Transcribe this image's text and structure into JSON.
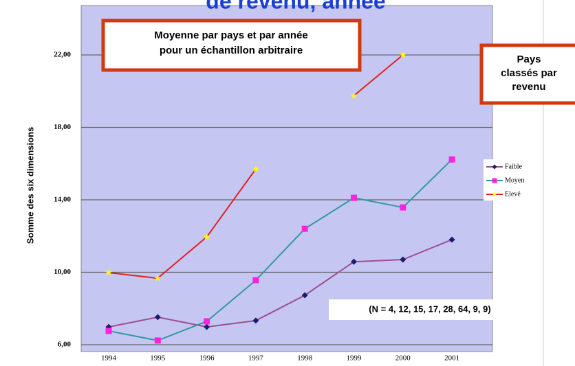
{
  "chart_data": {
    "type": "line",
    "title": "de revenu, année",
    "y_label": "Somme des six dimensions",
    "annotations": [
      "Moyenne par pays et par année",
      "pour un échantillon arbitraire",
      "Pays",
      "classés par",
      "revenu",
      "(N = 4, 12, 15, 17, 28, 64, 9, 9)"
    ],
    "categories": [
      "1994",
      "1995",
      "1996",
      "1997",
      "1998",
      "1999",
      "2000",
      "2001"
    ],
    "series": [
      {
        "name": "Faible",
        "color": "#9b4f8f",
        "marker_color": "#1c1c70",
        "marker": "diamond",
        "values": [
          6.98,
          7.52,
          6.98,
          7.33,
          8.73,
          10.58,
          10.7,
          11.8
        ]
      },
      {
        "name": "Moyen",
        "color": "#2f9aa0",
        "marker_color": "#ff22dd",
        "marker": "square",
        "values": [
          6.76,
          6.23,
          7.29,
          9.56,
          12.4,
          14.11,
          13.58,
          16.23
        ]
      },
      {
        "name": "Elevé",
        "color": "#e02020",
        "marker_color": "#ffff00",
        "marker": "star",
        "values": [
          9.98,
          9.67,
          11.95,
          15.7,
          null,
          19.75,
          22.0,
          null
        ]
      }
    ],
    "ylim": [
      5.62,
      24.73
    ],
    "yticks": [
      {
        "value": 6,
        "label": "6,00"
      },
      {
        "value": 10,
        "label": "10,00"
      },
      {
        "value": 14,
        "label": "14,00"
      },
      {
        "value": 18,
        "label": "18,00"
      },
      {
        "value": 22,
        "label": "22,00"
      }
    ],
    "grid": true,
    "legend": "right"
  }
}
